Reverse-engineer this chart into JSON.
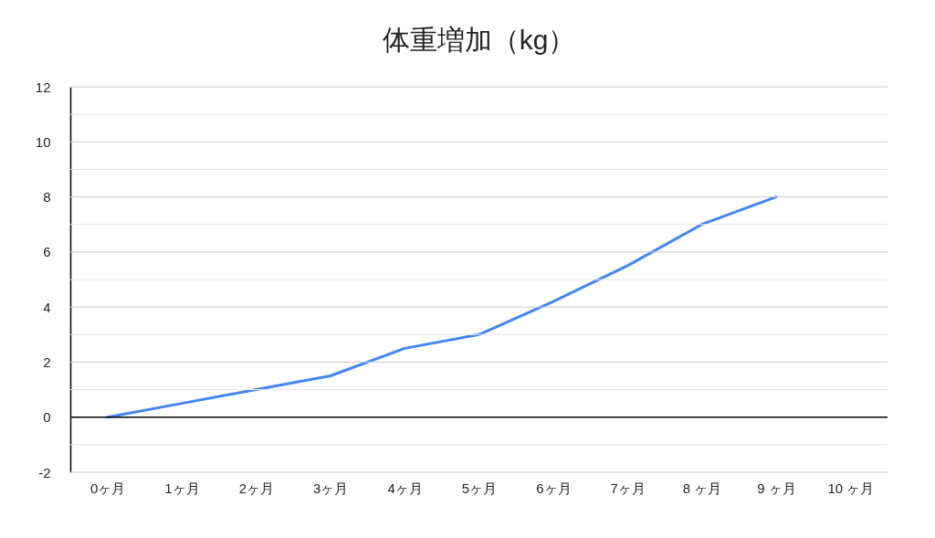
{
  "chart_data": {
    "type": "line",
    "title": "体重増加（kg）",
    "categories": [
      "0ヶ月",
      "1ヶ月",
      "2ヶ月",
      "3ヶ月",
      "4ヶ月",
      "5ヶ月",
      "6ヶ月",
      "7ヶ月",
      "8 ヶ月",
      "9 ヶ月",
      "10 ヶ月"
    ],
    "series": [
      {
        "color": "#4285f4",
        "values": [
          0,
          0.5,
          1,
          1.5,
          2.5,
          3,
          4.2,
          5.5,
          7,
          8,
          null
        ]
      }
    ],
    "ylim": [
      -2,
      12
    ],
    "yticks": [
      -2,
      {
        "value": -1,
        "label": null
      },
      0,
      {
        "value": 1,
        "label": null
      },
      2,
      {
        "value": 3,
        "label": null
      },
      4,
      {
        "value": 5,
        "label": null
      },
      6,
      {
        "value": 7,
        "label": null
      },
      8,
      {
        "value": 9,
        "label": null
      },
      10,
      {
        "value": 11,
        "label": null
      },
      12
    ],
    "ref_lines": [
      {
        "axis": "y",
        "value": 0,
        "color": "#000000"
      }
    ],
    "grid": "y",
    "marker": "none",
    "line_style": "solid"
  }
}
